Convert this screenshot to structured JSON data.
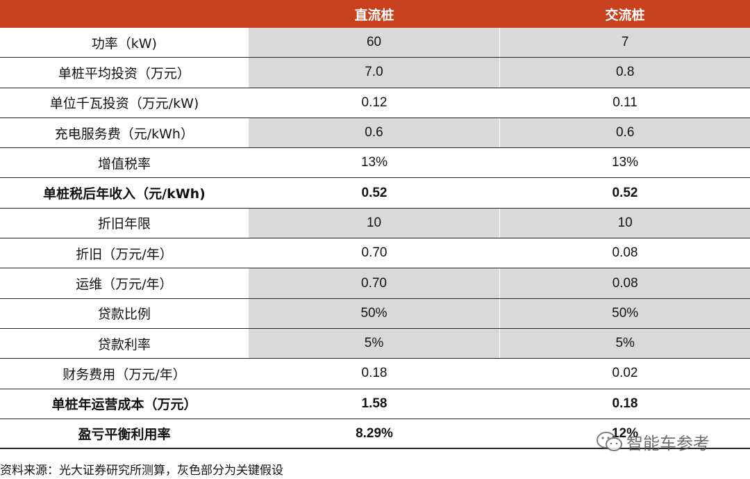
{
  "header": {
    "col1": "",
    "col2": "直流桩",
    "col3": "交流桩"
  },
  "rows": [
    {
      "label": "功率（kW)",
      "dc": "60",
      "ac": "7",
      "gray": true,
      "bold": false
    },
    {
      "label": "单桩平均投资（万元）",
      "dc": "7.0",
      "ac": "0.8",
      "gray": true,
      "bold": false
    },
    {
      "label": "单位千瓦投资（万元/kW)",
      "dc": "0.12",
      "ac": "0.11",
      "gray": false,
      "bold": false
    },
    {
      "label": "充电服务费（元/kWh）",
      "dc": "0.6",
      "ac": "0.6",
      "gray": true,
      "bold": false
    },
    {
      "label": "增值税率",
      "dc": "13%",
      "ac": "13%",
      "gray": false,
      "bold": false
    },
    {
      "label": "单桩税后年收入（元/kWh)",
      "dc": "0.52",
      "ac": "0.52",
      "gray": false,
      "bold": true
    },
    {
      "label": "折旧年限",
      "dc": "10",
      "ac": "10",
      "gray": true,
      "bold": false
    },
    {
      "label": "折旧（万元/年）",
      "dc": "0.70",
      "ac": "0.08",
      "gray": false,
      "bold": false
    },
    {
      "label": "运维（万元/年）",
      "dc": "0.70",
      "ac": "0.08",
      "gray": true,
      "bold": false
    },
    {
      "label": "贷款比例",
      "dc": "50%",
      "ac": "50%",
      "gray": true,
      "bold": false
    },
    {
      "label": "贷款利率",
      "dc": "5%",
      "ac": "5%",
      "gray": true,
      "bold": false
    },
    {
      "label": "财务费用（万元/年）",
      "dc": "0.18",
      "ac": "0.02",
      "gray": false,
      "bold": false
    },
    {
      "label": "单桩年运营成本（万元）",
      "dc": "1.58",
      "ac": "0.18",
      "gray": false,
      "bold": true
    },
    {
      "label": "盈亏平衡利用率",
      "dc": "8.29%",
      "ac": "12%",
      "gray": false,
      "bold": true
    }
  ],
  "source": "资料来源：光大证券研究所测算，灰色部分为关键假设",
  "watermark": "智能车参考",
  "colors": {
    "header_bg": "#c8411e",
    "assumption_bg": "#d9d9d9"
  }
}
